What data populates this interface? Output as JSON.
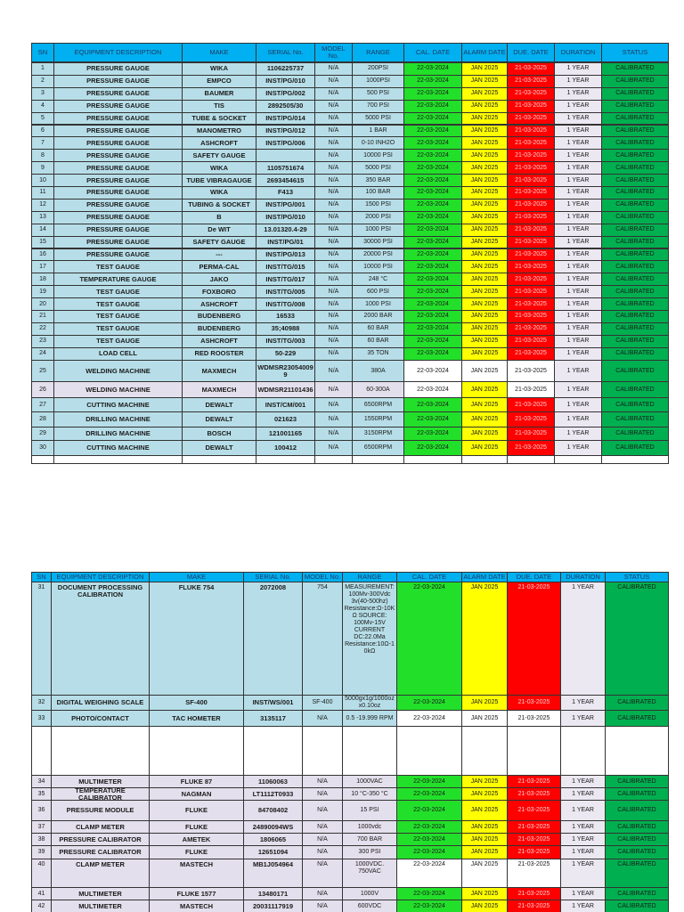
{
  "tables": [
    {
      "headers": [
        "SN",
        "EQUIPMENT DESCRIPTION",
        "MAKE",
        "SERIAL No.",
        "MODEL No.",
        "RANGE",
        "CAL. DATE",
        "ALARM DATE",
        "DUE. DATE",
        "DURATION",
        "STATUS"
      ],
      "rows": [
        [
          1,
          "PRESSURE GAUGE",
          "WIKA",
          "1106225737",
          "N/A",
          "200PSI",
          "22-03-2024",
          "JAN 2025",
          "21-03-2025",
          "1 YEAR",
          "CALIBRATED"
        ],
        [
          2,
          "PRESSURE GAUGE",
          "EMPCO",
          "INST/PG/010",
          "N/A",
          "1000PSI",
          "22-03-2024",
          "JAN 2025",
          "21-03-2025",
          "1 YEAR",
          "CALIBRATED"
        ],
        [
          3,
          "PRESSURE GAUGE",
          "BAUMER",
          "INST/PG/002",
          "N/A",
          "500 PSI",
          "22-03-2024",
          "JAN 2025",
          "21-03-2025",
          "1 YEAR",
          "CALIBRATED"
        ],
        [
          4,
          "PRESSURE GAUGE",
          "TIS",
          "2892505/30",
          "N/A",
          "700 PSI",
          "22-03-2024",
          "JAN 2025",
          "21-03-2025",
          "1 YEAR",
          "CALIBRATED"
        ],
        [
          5,
          "PRESSURE GAUGE",
          "TUBE & SOCKET",
          "INST/PG/014",
          "N/A",
          "5000 PSI",
          "22-03-2024",
          "JAN 2025",
          "21-03-2025",
          "1 YEAR",
          "CALIBRATED"
        ],
        [
          6,
          "PRESSURE GAUGE",
          "MANOMETRO",
          "INST/PG/012",
          "N/A",
          "1 BAR",
          "22-03-2024",
          "JAN 2025",
          "21-03-2025",
          "1 YEAR",
          "CALIBRATED"
        ],
        [
          7,
          "PRESSURE GAUGE",
          "ASHCROFT",
          "INST/PG/006",
          "N/A",
          "0-10 INH2O",
          "22-03-2024",
          "JAN 2025",
          "21-03-2025",
          "1 YEAR",
          "CALIBRATED"
        ],
        [
          8,
          "PRESSURE GAUGE",
          "SAFETY GAUGE",
          null,
          "N/A",
          "10000 PSI",
          "22-03-2024",
          "JAN 2025",
          "21-03-2025",
          "1 YEAR",
          "CALIBRATED"
        ],
        [
          9,
          "PRESSURE GAUGE",
          "WIKA",
          "1105751674",
          "N/A",
          "5000 PSI",
          "22-03-2024",
          "JAN 2025",
          "21-03-2025",
          "1 YEAR",
          "CALIBRATED"
        ],
        [
          10,
          "PRESSURE GAUGE",
          "TUBE VIBRAGAUGE",
          "2693454615",
          "N/A",
          "350 BAR",
          "22-03-2024",
          "JAN 2025",
          "21-03-2025",
          "1 YEAR",
          "CALIBRATED"
        ],
        [
          11,
          "PRESSURE GAUGE",
          "WIKA",
          "F413",
          "N/A",
          "100 BAR",
          "22-03-2024",
          "JAN 2025",
          "21-03-2025",
          "1 YEAR",
          "CALIBRATED"
        ],
        [
          12,
          "PRESSURE GAUGE",
          "TUBING & SOCKET",
          "INST/PG/001",
          "N/A",
          "1500 PSI",
          "22-03-2024",
          "JAN 2025",
          "21-03-2025",
          "1 YEAR",
          "CALIBRATED"
        ],
        [
          13,
          "PRESSURE GAUGE",
          "B",
          "INST/PG/010",
          "N/A",
          "2000 PSI",
          "22-03-2024",
          "JAN 2025",
          "21-03-2025",
          "1 YEAR",
          "CALIBRATED"
        ],
        [
          14,
          "PRESSURE GAUGE",
          "De WIT",
          "13.01320.4-29",
          "N/A",
          "1000 PSI",
          "22-03-2024",
          "JAN 2025",
          "21-03-2025",
          "1 YEAR",
          "CALIBRATED"
        ],
        [
          15,
          "PRESSURE GAUGE",
          "SAFETY GAUGE",
          "INST/PG/01",
          "N/A",
          "30000 PSI",
          "22-03-2024",
          "JAN 2025",
          "21-03-2025",
          "1 YEAR",
          "CALIBRATED"
        ],
        [
          16,
          "PRESSURE GAUGE",
          "---",
          "INST/PG/013",
          "N/A",
          "20000 PSI",
          "22-03-2024",
          "JAN 2025",
          "21-03-2025",
          "1 YEAR",
          "CALIBRATED"
        ],
        [
          17,
          "TEST GAUGE",
          "PERMA-CAL",
          "INST/TG/015",
          "N/A",
          "10000 PSI",
          "22-03-2024",
          "JAN 2025",
          "21-03-2025",
          "1 YEAR",
          "CALIBRATED"
        ],
        [
          18,
          "TEMPERATURE GAUGE",
          "JAKO",
          "INST/TG/017",
          "N/A",
          "248 °C",
          "22-03-2024",
          "JAN 2025",
          "21-03-2025",
          "1 YEAR",
          "CALIBRATED"
        ],
        [
          19,
          "TEST GAUGE",
          "FOXBORO",
          "INST/TG/005",
          "N/A",
          "600 PSI",
          "22-03-2024",
          "JAN 2025",
          "21-03-2025",
          "1 YEAR",
          "CALIBRATED"
        ],
        [
          20,
          "TEST GAUGE",
          "ASHCROFT",
          "INST/TG/008",
          "N/A",
          "1000 PSI",
          "22-03-2024",
          "JAN 2025",
          "21-03-2025",
          "1 YEAR",
          "CALIBRATED"
        ],
        [
          21,
          "TEST GAUGE",
          "BUDENBERG",
          "16533",
          "N/A",
          "2000 BAR",
          "22-03-2024",
          "JAN 2025",
          "21-03-2025",
          "1 YEAR",
          "CALIBRATED"
        ],
        [
          22,
          "TEST GAUGE",
          "BUDENBERG",
          "35;40988",
          "N/A",
          "60 BAR",
          "22-03-2024",
          "JAN 2025",
          "21-03-2025",
          "1 YEAR",
          "CALIBRATED"
        ],
        [
          23,
          "TEST GAUGE",
          "ASHCROFT",
          "INST/TG/003",
          "N/A",
          "60 BAR",
          "22-03-2024",
          "JAN 2025",
          "21-03-2025",
          "1 YEAR",
          "CALIBRATED"
        ],
        [
          24,
          "LOAD CELL",
          "RED ROOSTER",
          "50-229",
          "N/A",
          "35 TON",
          "22-03-2024",
          "JAN 2025",
          "21-03-2025",
          "1 YEAR",
          "CALIBRATED"
        ],
        [
          25,
          "WELDING MACHINE",
          "MAXMECH",
          "WDMSR230540099",
          "N/A",
          "380A",
          "22-03-2024",
          "JAN 2025",
          "21-03-2025",
          "1 YEAR",
          "CALIBRATED"
        ],
        [
          26,
          "WELDING MACHINE",
          "MAXMECH",
          "WDMSR21101436",
          "N/A",
          "60-300A",
          "22-03-2024",
          "JAN 2025",
          "21-03-2025",
          "1 YEAR",
          "CALIBRATED"
        ],
        [
          27,
          "CUTTING MACHINE",
          "DEWALT",
          "INST/CM/001",
          "N/A",
          "6500RPM",
          "22-03-2024",
          "JAN 2025",
          "21-03-2025",
          "1 YEAR",
          "CALIBRATED"
        ],
        [
          28,
          "DRILLING MACHINE",
          "DEWALT",
          "021623",
          "N/A",
          "1550RPM",
          "22-03-2024",
          "JAN 2025",
          "21-03-2025",
          "1 YEAR",
          "CALIBRATED"
        ],
        [
          29,
          "DRILLING MACHINE",
          "BOSCH",
          "121001165",
          "N/A",
          "3150RPM",
          "22-03-2024",
          "JAN 2025",
          "21-03-2025",
          "1 YEAR",
          "CALIBRATED"
        ],
        [
          30,
          "CUTTING MACHINE",
          "DEWALT",
          "100412",
          "N/A",
          "6500RPM",
          "22-03-2024",
          "JAN 2025",
          "21-03-2025",
          "1 YEAR",
          "CALIBRATED"
        ]
      ]
    },
    {
      "headers": [
        "SN",
        "EQUIPMENT DESCRIPTION",
        "MAKE",
        "SERIAL No.",
        "MODEL No.",
        "RANGE",
        "CAL. DATE",
        "ALARM DATE",
        "DUE. DATE",
        "DURATION",
        "STATUS"
      ],
      "rows": [
        [
          31,
          "DOCUMENT PROCESSING CALIBRATION",
          "FLUKE 754",
          "2072008",
          "754",
          "MEASUREMENT: 100Mv-300Vdc 3v(40-500hz) Resistance:Ω-10KΩ SOURCE: 100Mv-15V CURRENT DC:22.0Ma Resistance:10Ω-10kΩ",
          "22-03-2024",
          "JAN 2025",
          "21-03-2025",
          "1 YEAR",
          "CALIBRATED"
        ],
        [
          32,
          "DIGITAL WEIGHING SCALE",
          "SF-400",
          "INST/WS/001",
          "SF-400",
          "5000gx1g/1000oz x0.10oz",
          "22-03-2024",
          "JAN 2025",
          "21-03-2025",
          "1 YEAR",
          "CALIBRATED"
        ],
        [
          33,
          "PHOTO/CONTACT",
          "TAC HOMETER",
          "3135117",
          "N/A",
          "0.5 -19.999 RPM",
          "22-03-2024",
          "JAN 2025",
          "21-03-2025",
          "1 YEAR",
          "CALIBRATED"
        ],
        [
          34,
          "MULTIMETER",
          "FLUKE 87",
          "11060063",
          "N/A",
          "1000VAC",
          "22-03-2024",
          "JAN 2025",
          "21-03-2025",
          "1 YEAR",
          "CALIBRATED"
        ],
        [
          35,
          "TEMPERATURE CALIBRATOR",
          "NAGMAN",
          "LT1112T0933",
          "N/A",
          "10 °C-350 °C",
          "22-03-2024",
          "JAN 2025",
          "21-03-2025",
          "1 YEAR",
          "CALIBRATED"
        ],
        [
          36,
          "PRESSURE MODULE",
          "FLUKE",
          "84708402",
          "N/A",
          "15 PSI",
          "22-03-2024",
          "JAN 2025",
          "21-03-2025",
          "1 YEAR",
          "CALIBRATED"
        ],
        [
          37,
          "CLAMP METER",
          "FLUKE",
          "24890094WS",
          "N/A",
          "1000vdc",
          "22-03-2024",
          "JAN 2025",
          "21-03-2025",
          "1 YEAR",
          "CALIBRATED"
        ],
        [
          38,
          "PRESSURE CALIBRATOR",
          "AMETEK",
          "1806065",
          "N/A",
          "700 BAR",
          "22-03-2024",
          "JAN 2025",
          "21-03-2025",
          "1 YEAR",
          "CALIBRATED"
        ],
        [
          39,
          "PRESSURE CALIBRATOR",
          "FLUKE",
          "12651094",
          "N/A",
          "300 PSI",
          "22-03-2024",
          "JAN 2025",
          "21-03-2025",
          "1 YEAR",
          "CALIBRATED"
        ],
        [
          40,
          "CLAMP METER",
          "MASTECH",
          "MB1J054964",
          "N/A",
          "1000VDC. 750VAC",
          "22-03-2024",
          "JAN 2025",
          "21-03-2025",
          "1 YEAR",
          "CALIBRATED"
        ],
        [
          41,
          "MULTIMETER",
          "FLUKE 1577",
          "13480171",
          "N/A",
          "1000V",
          "22-03-2024",
          "JAN 2025",
          "21-03-2025",
          "1 YEAR",
          "CALIBRATED"
        ],
        [
          42,
          "MULTIMETER",
          "MASTECH",
          "20031117919",
          "N/A",
          "600VDC",
          "22-03-2024",
          "JAN 2025",
          "21-03-2025",
          "1 YEAR",
          "CALIBRATED"
        ]
      ]
    }
  ]
}
